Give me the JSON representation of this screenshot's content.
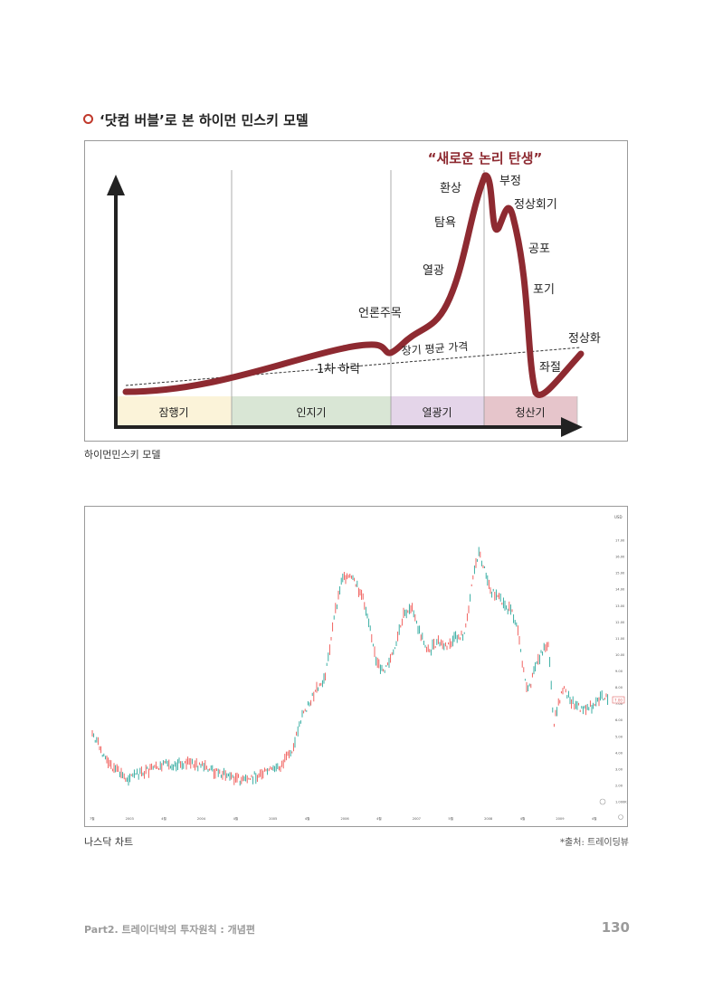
{
  "heading": "‘닷컴 버블’로 본 하이먼 민스키 모델",
  "model": {
    "headline": "“새로운 논리 탄생”",
    "phases": [
      "잠행기",
      "인지기",
      "열광기",
      "청산기"
    ],
    "labels": {
      "hwansang": "환상",
      "bujeong": "부정",
      "jeongsanghoegi": "정상회기",
      "tamyok": "탐욕",
      "gongpo": "공포",
      "yeolgwang": "열광",
      "pogi": "포기",
      "eollon": "언론주목",
      "avg": "장기 평균 가격",
      "jeongsanghwa": "정상화",
      "haraak": "1차 하락",
      "jwajeol": "좌절"
    },
    "colors": {
      "curve": "#8e2a31",
      "phase1": "#fbf3d9",
      "phase2": "#d9e6d5",
      "phase3": "#e4d5e9",
      "phase4": "#e6c5cb"
    }
  },
  "caption1": "하이먼민스키 모델",
  "nasdaq": {
    "y_ticks": [
      "17.00",
      "16.00",
      "15.00",
      "14.00",
      "13.00",
      "12.00",
      "11.00",
      "10.00",
      "9.00",
      "8.00",
      "7.00",
      "6.00",
      "5.00",
      "4.00",
      "3.00",
      "2.00",
      "1.000K"
    ],
    "x_ticks": [
      "7월",
      "2003",
      "4월",
      "2004",
      "4월",
      "2005",
      "4월",
      "2006",
      "4월",
      "2007",
      "5월",
      "2008",
      "4월",
      "2009",
      "4월"
    ],
    "currency": "USD",
    "last_price": "7.00"
  },
  "caption2": "나스닥 차트",
  "source": "*출처: 트레이딩뷰",
  "footer": "Part2. 트레이더박의 투자원칙 : 개념편",
  "page_number": "130"
}
